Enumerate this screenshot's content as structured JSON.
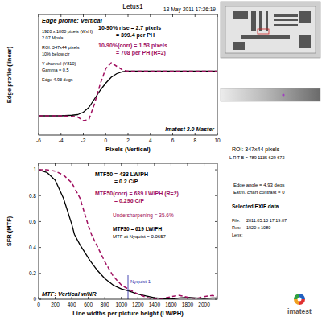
{
  "header": {
    "title": "Letus1"
  },
  "chart_data": [
    {
      "type": "line",
      "title": "Edge profile: Vertical",
      "x_label": "Pixels (Vertical)",
      "y_label": "Edge profile (linear)",
      "xlim": [
        -6,
        10
      ],
      "xticks": [
        -6,
        -4,
        -2,
        0,
        2,
        4,
        6,
        8,
        10
      ],
      "ylim": [
        0,
        1
      ],
      "tick_labels": "x",
      "grid": false,
      "series": [
        {
          "color": "#000000",
          "line_style": "solid",
          "x": [
            -6,
            -5,
            -4,
            -3,
            -2.5,
            -2,
            -1.5,
            -1,
            -0.5,
            0,
            0.5,
            1,
            1.5,
            2,
            3,
            4,
            5,
            6,
            7,
            8,
            9,
            10
          ],
          "values": [
            0.16,
            0.16,
            0.16,
            0.165,
            0.17,
            0.19,
            0.23,
            0.3,
            0.37,
            0.43,
            0.48,
            0.51,
            0.525,
            0.53,
            0.53,
            0.53,
            0.53,
            0.53,
            0.53,
            0.53,
            0.53,
            0.53
          ]
        },
        {
          "color": "#a01060",
          "line_style": "dashed",
          "x": [
            -6,
            -5,
            -4,
            -3,
            -2.5,
            -2,
            -1.5,
            -1,
            -0.5,
            0,
            0.5,
            1,
            1.5,
            2,
            3,
            4,
            5,
            6,
            7,
            8,
            9,
            10
          ],
          "values": [
            0.16,
            0.16,
            0.16,
            0.155,
            0.15,
            0.12,
            0.13,
            0.26,
            0.42,
            0.55,
            0.6,
            0.57,
            0.54,
            0.53,
            0.53,
            0.53,
            0.53,
            0.53,
            0.53,
            0.53,
            0.53,
            0.53
          ]
        }
      ],
      "annotations": [
        {
          "text": "13-May-2011 17:26:19",
          "color": "#000000"
        },
        {
          "text": "1920 x 1080 pixels (WxH)",
          "color": "#000000"
        },
        {
          "text": "2.07 Mpxls",
          "color": "#000000"
        },
        {
          "text": "ROI: 347x44 pixels",
          "color": "#000000"
        },
        {
          "text": "10% below ctr",
          "color": "#000000"
        },
        {
          "text": "Y-channel (Y810)",
          "color": "#000000"
        },
        {
          "text": "Gamma = 0.5",
          "color": "#000000"
        },
        {
          "text": "Edge 4.93 degs",
          "color": "#000000"
        },
        {
          "text": "10-90% rise = 2.7 pixels",
          "color": "#000000"
        },
        {
          "text": "= 399.4 per PH",
          "color": "#000000"
        },
        {
          "text": "10-90%(corr) = 1.53 pixels",
          "color": "#a01060"
        },
        {
          "text": "= 708 per PH (R=2)",
          "color": "#a01060"
        },
        {
          "text": "Imatest 3.0 Master",
          "color": "#000000"
        }
      ]
    },
    {
      "type": "line",
      "title": "MTF: Vertical w/NR",
      "x_label": "Line widths per picture height (LW/PH)",
      "y_label": "SFR (MTF)",
      "xlim": [
        0,
        2160
      ],
      "xticks": [
        0,
        200,
        400,
        600,
        800,
        1000,
        1200,
        1400,
        1600,
        1800,
        2000
      ],
      "ylim": [
        0,
        1.05
      ],
      "yticks": [
        0,
        0.2,
        0.4,
        0.6,
        0.8,
        1
      ],
      "tick_labels": true,
      "grid": false,
      "series": [
        {
          "color": "#000000",
          "line_style": "solid",
          "x": [
            0,
            100,
            200,
            300,
            400,
            433,
            500,
            619,
            700,
            800,
            900,
            1000,
            1080,
            1200,
            1300,
            1400,
            1500,
            1600,
            1700,
            1800,
            1900,
            2000,
            2100,
            2160
          ],
          "values": [
            1,
            0.98,
            0.92,
            0.78,
            0.58,
            0.5,
            0.42,
            0.3,
            0.23,
            0.16,
            0.11,
            0.08,
            0.066,
            0.04,
            0.025,
            0.012,
            0.005,
            0,
            0.01,
            0.015,
            0.01,
            0.005,
            0.01,
            0.01
          ]
        },
        {
          "color": "#a01060",
          "line_style": "dashed",
          "x": [
            0,
            100,
            200,
            300,
            400,
            500,
            600,
            639,
            700,
            800,
            900,
            1000,
            1080,
            1200,
            1300,
            1400,
            1500,
            1600,
            1700,
            1800,
            1900,
            2000,
            2100,
            2160
          ],
          "values": [
            1,
            1,
            0.99,
            0.96,
            0.9,
            0.78,
            0.57,
            0.5,
            0.42,
            0.29,
            0.18,
            0.11,
            0.08,
            0.04,
            0.015,
            0,
            0.005,
            0.02,
            0.03,
            0.015,
            0.005,
            0.02,
            0.03,
            0.02
          ]
        }
      ],
      "reference_lines": [
        {
          "x": 1080,
          "label": "Nyquist 1",
          "color": "#3333aa"
        }
      ],
      "annotations": [
        {
          "text": "MTF50 = 433 LW/PH",
          "color": "#000000"
        },
        {
          "text": "= 0.2 C/P",
          "color": "#000000"
        },
        {
          "text": "MTF50(corr) = 639 LW/PH (R=2)",
          "color": "#a01060"
        },
        {
          "text": "= 0.296 C/P",
          "color": "#a01060"
        },
        {
          "text": "Undersharpening = 35.6%",
          "color": "#a01060"
        },
        {
          "text": "MTF30 = 619 LW/PH",
          "color": "#000000"
        },
        {
          "text": "MTF at Nyquist = 0.0657",
          "color": "#000000"
        }
      ]
    }
  ],
  "side_panel": {
    "roi": "ROI: 347x44 pixels",
    "lrtb": "L R T B = 789 1135 629 672",
    "lines": [
      "Edge angle = 4.93 degs",
      "Estm. chart contrast = 0"
    ],
    "exif_title": "Selected EXIF data",
    "exif": [
      {
        "label": "File:",
        "value": "2011:05:13 17:19:07"
      },
      {
        "label": "Res:",
        "value": "1920 x 1080"
      },
      {
        "label": "Lens:"
      }
    ]
  },
  "logo": {
    "text": "imatest"
  }
}
